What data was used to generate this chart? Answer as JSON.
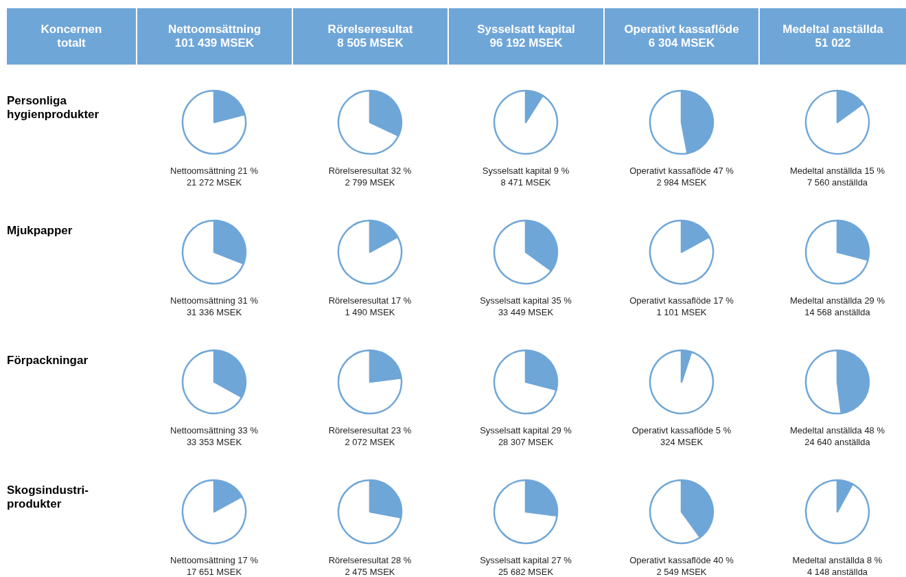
{
  "chart_data": [
    {
      "type": "other",
      "annotations": [
        "Koncernen\ntotalt",
        "Nettoomsättning\n101 439 MSEK",
        "Rörelseresultat\n8 505 MSEK",
        "Sysselsatt kapital\n96 192 MSEK",
        "Operativt kassaflöde\n6 304 MSEK",
        "Medeltal anställda\n51 022",
        "Personliga\nhygienprodukter",
        "Mjukpapper",
        "Förpackningar",
        "Skogsindustri-\nprodukter"
      ]
    },
    {
      "type": "pie",
      "categories": [
        null,
        null
      ],
      "values": [
        21,
        79
      ],
      "colors": [
        "#6fa6d8",
        "#ffffff"
      ],
      "annotations": [
        "Nettoomsättning 21 %",
        "21 272 MSEK"
      ]
    },
    {
      "type": "pie",
      "categories": [
        null,
        null
      ],
      "values": [
        32,
        68
      ],
      "colors": [
        "#6fa6d8",
        "#ffffff"
      ],
      "annotations": [
        "Rörelseresultat 32 %",
        "2 799 MSEK"
      ]
    },
    {
      "type": "pie",
      "categories": [
        null,
        null
      ],
      "values": [
        9,
        91
      ],
      "colors": [
        "#6fa6d8",
        "#ffffff"
      ],
      "annotations": [
        "Sysselsatt kapital 9 %",
        "8 471 MSEK"
      ]
    },
    {
      "type": "pie",
      "categories": [
        null,
        null
      ],
      "values": [
        47,
        53
      ],
      "colors": [
        "#6fa6d8",
        "#ffffff"
      ],
      "annotations": [
        "Operativt kassaflöde 47 %",
        "2 984 MSEK"
      ]
    },
    {
      "type": "pie",
      "categories": [
        null,
        null
      ],
      "values": [
        15,
        85
      ],
      "colors": [
        "#6fa6d8",
        "#ffffff"
      ],
      "annotations": [
        "Medeltal anställda 15 %",
        "7 560 anställda"
      ]
    },
    {
      "type": "pie",
      "categories": [
        null,
        null
      ],
      "values": [
        31,
        69
      ],
      "colors": [
        "#6fa6d8",
        "#ffffff"
      ],
      "annotations": [
        "Nettoomsättning 31 %",
        "31 336 MSEK"
      ]
    },
    {
      "type": "pie",
      "categories": [
        null,
        null
      ],
      "values": [
        17,
        83
      ],
      "colors": [
        "#6fa6d8",
        "#ffffff"
      ],
      "annotations": [
        "Rörelseresultat 17 %",
        "1 490 MSEK"
      ]
    },
    {
      "type": "pie",
      "categories": [
        null,
        null
      ],
      "values": [
        35,
        65
      ],
      "colors": [
        "#6fa6d8",
        "#ffffff"
      ],
      "annotations": [
        "Sysselsatt kapital 35 %",
        "33 449 MSEK"
      ]
    },
    {
      "type": "pie",
      "categories": [
        null,
        null
      ],
      "values": [
        17,
        83
      ],
      "colors": [
        "#6fa6d8",
        "#ffffff"
      ],
      "annotations": [
        "Operativt kassaflöde 17 %",
        "1 101 MSEK"
      ]
    },
    {
      "type": "pie",
      "categories": [
        null,
        null
      ],
      "values": [
        29,
        71
      ],
      "colors": [
        "#6fa6d8",
        "#ffffff"
      ],
      "annotations": [
        "Medeltal anställda 29 %",
        "14 568 anställda"
      ]
    },
    {
      "type": "pie",
      "categories": [
        null,
        null
      ],
      "values": [
        33,
        67
      ],
      "colors": [
        "#6fa6d8",
        "#ffffff"
      ],
      "annotations": [
        "Nettoomsättning 33 %",
        "33 353 MSEK"
      ]
    },
    {
      "type": "pie",
      "categories": [
        null,
        null
      ],
      "values": [
        23,
        77
      ],
      "colors": [
        "#6fa6d8",
        "#ffffff"
      ],
      "annotations": [
        "Rörelseresultat 23 %",
        "2 072 MSEK"
      ]
    },
    {
      "type": "pie",
      "categories": [
        null,
        null
      ],
      "values": [
        29,
        71
      ],
      "colors": [
        "#6fa6d8",
        "#ffffff"
      ],
      "annotations": [
        "Sysselsatt kapital 29 %",
        "28 307 MSEK"
      ]
    },
    {
      "type": "pie",
      "categories": [
        null,
        null
      ],
      "values": [
        5,
        95
      ],
      "colors": [
        "#6fa6d8",
        "#ffffff"
      ],
      "annotations": [
        "Operativt kassaflöde 5 %",
        "324 MSEK"
      ]
    },
    {
      "type": "pie",
      "categories": [
        null,
        null
      ],
      "values": [
        48,
        52
      ],
      "colors": [
        "#6fa6d8",
        "#ffffff"
      ],
      "annotations": [
        "Medeltal anställda 48 %",
        "24 640 anställda"
      ]
    },
    {
      "type": "pie",
      "categories": [
        null,
        null
      ],
      "values": [
        17,
        83
      ],
      "colors": [
        "#6fa6d8",
        "#ffffff"
      ],
      "annotations": [
        "Nettoomsättning 17 %",
        "17 651 MSEK"
      ]
    },
    {
      "type": "pie",
      "categories": [
        null,
        null
      ],
      "values": [
        28,
        72
      ],
      "colors": [
        "#6fa6d8",
        "#ffffff"
      ],
      "annotations": [
        "Rörelseresultat 28 %",
        "2 475 MSEK"
      ]
    },
    {
      "type": "pie",
      "categories": [
        null,
        null
      ],
      "values": [
        27,
        73
      ],
      "colors": [
        "#6fa6d8",
        "#ffffff"
      ],
      "annotations": [
        "Sysselsatt kapital 27 %",
        "25 682 MSEK"
      ]
    },
    {
      "type": "pie",
      "categories": [
        null,
        null
      ],
      "values": [
        40,
        60
      ],
      "colors": [
        "#6fa6d8",
        "#ffffff"
      ],
      "annotations": [
        "Operativt kassaflöde 40 %",
        "2 549 MSEK"
      ]
    },
    {
      "type": "pie",
      "categories": [
        null,
        null
      ],
      "values": [
        8,
        92
      ],
      "colors": [
        "#6fa6d8",
        "#ffffff"
      ],
      "annotations": [
        "Medeltal anställda 8 %",
        "4 148 anställda"
      ]
    }
  ]
}
